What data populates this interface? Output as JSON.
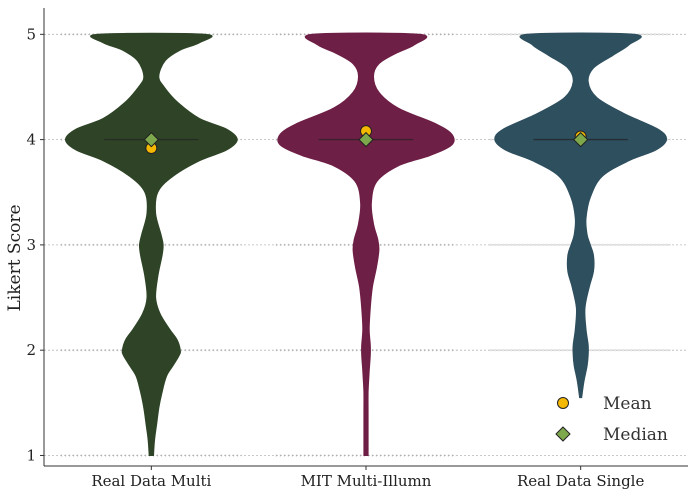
{
  "chart_data": {
    "type": "violin",
    "title": "",
    "xlabel": "",
    "ylabel": "Likert Score",
    "ylim": [
      0.9,
      5.25
    ],
    "yticks": [
      1,
      2,
      3,
      4,
      5
    ],
    "grid": true,
    "legend_position": "bottom-right",
    "categories": [
      "Real Data Multi",
      "MIT Multi-Illumn",
      "Real Data Single"
    ],
    "series": [
      {
        "category": "Real Data Multi",
        "color": "#2f4427",
        "mean": 3.92,
        "median": 4.0,
        "density": {
          "y": [
            1.0,
            1.15,
            1.3,
            1.45,
            1.6,
            1.75,
            1.85,
            1.95,
            2.0,
            2.1,
            2.2,
            2.35,
            2.5,
            2.7,
            2.9,
            3.0,
            3.1,
            3.3,
            3.5,
            3.65,
            3.8,
            3.9,
            4.0,
            4.1,
            4.2,
            4.35,
            4.5,
            4.6,
            4.75,
            4.85,
            4.92,
            5.0
          ],
          "half_width": [
            0.02,
            0.03,
            0.05,
            0.07,
            0.1,
            0.14,
            0.2,
            0.26,
            0.27,
            0.24,
            0.17,
            0.08,
            0.04,
            0.06,
            0.1,
            0.11,
            0.09,
            0.04,
            0.06,
            0.2,
            0.45,
            0.7,
            0.8,
            0.7,
            0.45,
            0.25,
            0.12,
            0.07,
            0.13,
            0.27,
            0.45,
            0.5
          ]
        }
      },
      {
        "category": "MIT Multi-Illumn",
        "color": "#6e1f45",
        "mean": 4.08,
        "median": 4.0,
        "density": {
          "y": [
            1.0,
            1.2,
            1.4,
            1.6,
            1.8,
            1.95,
            2.05,
            2.2,
            2.4,
            2.6,
            2.8,
            2.95,
            3.05,
            3.2,
            3.4,
            3.6,
            3.75,
            3.85,
            3.95,
            4.05,
            4.15,
            4.3,
            4.45,
            4.6,
            4.72,
            4.82,
            4.9,
            5.0
          ],
          "half_width": [
            0.02,
            0.02,
            0.02,
            0.02,
            0.03,
            0.04,
            0.04,
            0.03,
            0.04,
            0.06,
            0.1,
            0.12,
            0.11,
            0.07,
            0.05,
            0.1,
            0.3,
            0.6,
            0.8,
            0.8,
            0.65,
            0.3,
            0.12,
            0.07,
            0.12,
            0.28,
            0.45,
            0.5
          ]
        }
      },
      {
        "category": "Real Data Single",
        "color": "#2e4f5e",
        "mean": 4.03,
        "median": 4.0,
        "density": {
          "y": [
            1.55,
            1.7,
            1.85,
            1.95,
            2.05,
            2.2,
            2.4,
            2.6,
            2.75,
            2.9,
            3.0,
            3.1,
            3.25,
            3.45,
            3.65,
            3.8,
            3.9,
            4.0,
            4.1,
            4.25,
            4.4,
            4.55,
            4.68,
            4.8,
            4.9,
            5.0
          ],
          "half_width": [
            0.01,
            0.03,
            0.06,
            0.07,
            0.07,
            0.05,
            0.04,
            0.08,
            0.12,
            0.12,
            0.09,
            0.06,
            0.05,
            0.09,
            0.2,
            0.45,
            0.7,
            0.8,
            0.72,
            0.4,
            0.15,
            0.07,
            0.12,
            0.3,
            0.45,
            0.5
          ]
        }
      }
    ],
    "legend": [
      {
        "label": "Mean",
        "marker": "circle",
        "color": "#f5b800"
      },
      {
        "label": "Median",
        "marker": "diamond",
        "color": "#7ea84c"
      }
    ]
  }
}
